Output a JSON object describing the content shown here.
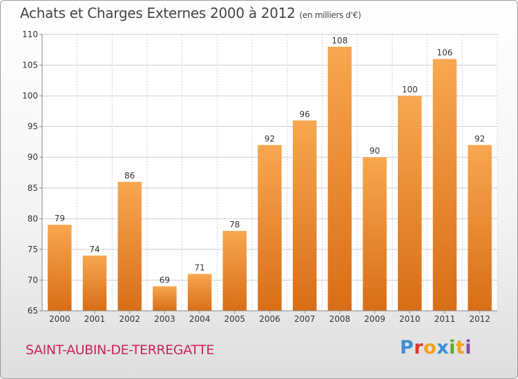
{
  "header": {
    "title": "Achats et Charges Externes 2000 à 2012",
    "unit": "(en milliers d'€)"
  },
  "footer": {
    "commune": "SAINT-AUBIN-DE-TERREGATTE",
    "logo_text": "Proxiti",
    "logo_letters": [
      {
        "ch": "P",
        "color": "#3a8fd6"
      },
      {
        "ch": "r",
        "color": "#e0362c"
      },
      {
        "ch": "o",
        "color": "#f2a31b"
      },
      {
        "ch": "x",
        "color": "#3a8fd6"
      },
      {
        "ch": "i",
        "color": "#5aaa32"
      },
      {
        "ch": "t",
        "color": "#f2a31b"
      },
      {
        "ch": "i",
        "color": "#8a4aa8"
      }
    ]
  },
  "colors": {
    "bar_light": "#f8a750",
    "bar_dark": "#d86e17",
    "grid": "#cfcfcf",
    "axis": "#888888",
    "plot_bg": "#ffffff",
    "commune": "#c8235a"
  },
  "chart_data": {
    "type": "bar",
    "categories": [
      "2000",
      "2001",
      "2002",
      "2003",
      "2004",
      "2005",
      "2006",
      "2007",
      "2008",
      "2009",
      "2010",
      "2011",
      "2012"
    ],
    "values": [
      79,
      74,
      86,
      69,
      71,
      78,
      92,
      96,
      108,
      90,
      100,
      106,
      92
    ],
    "ylim": [
      65,
      110
    ],
    "yticks": [
      65,
      70,
      75,
      80,
      85,
      90,
      95,
      100,
      105,
      110
    ],
    "grid": true,
    "data_labels": true
  }
}
